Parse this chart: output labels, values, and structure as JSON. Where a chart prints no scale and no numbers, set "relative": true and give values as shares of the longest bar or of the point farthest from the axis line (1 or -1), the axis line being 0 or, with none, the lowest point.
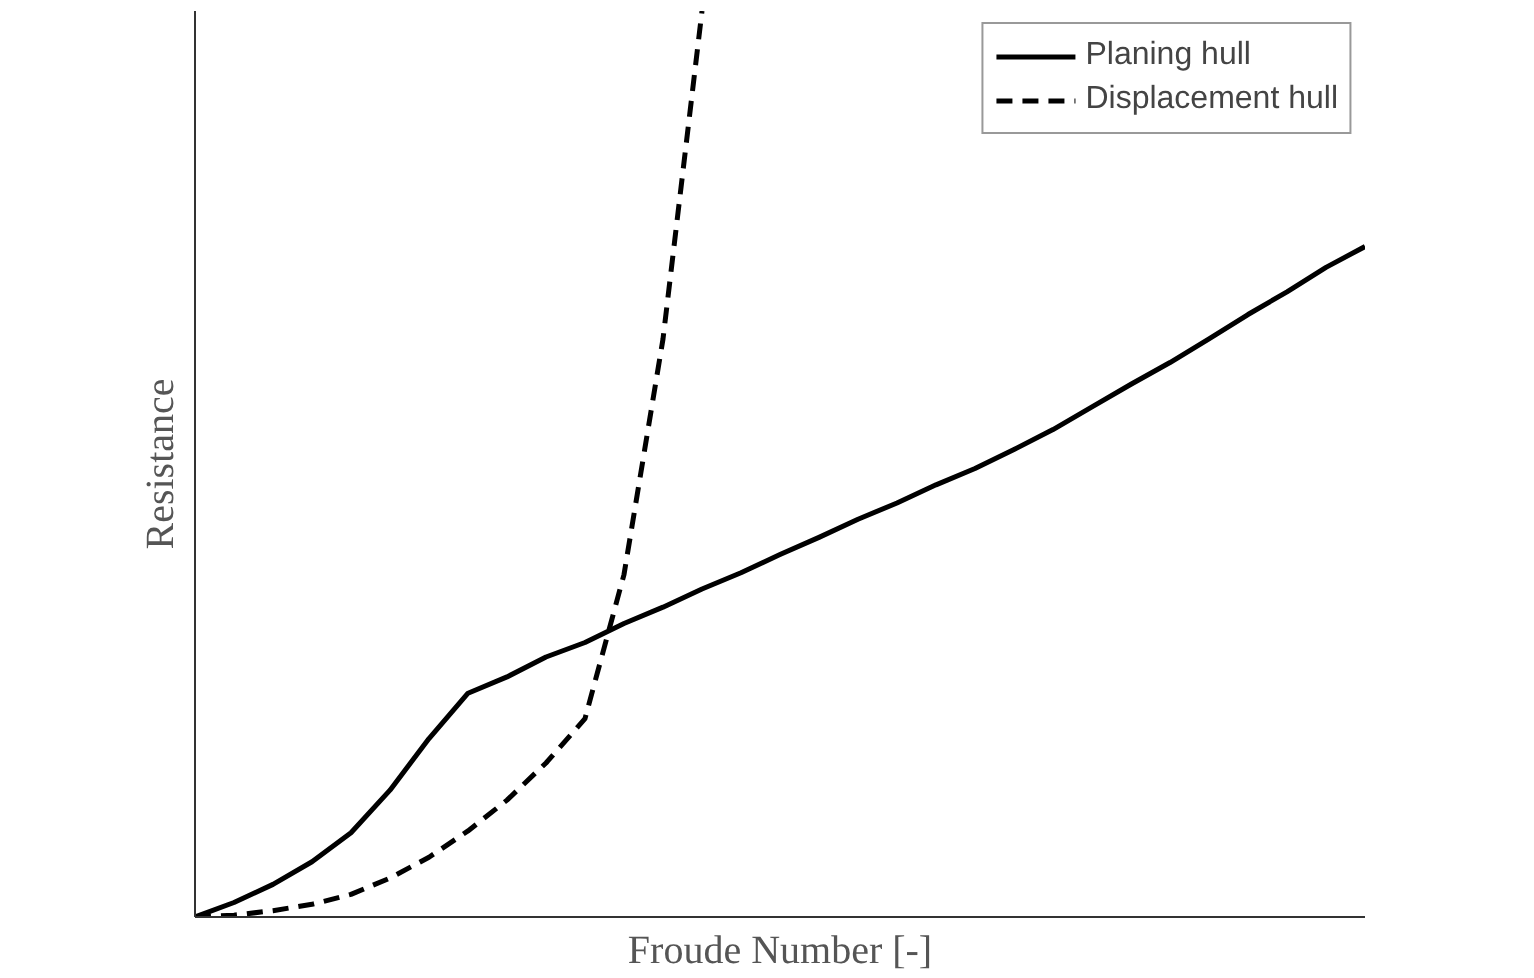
{
  "chart_data": {
    "type": "line",
    "relative": true,
    "xlabel": "Froude Number [-]",
    "ylabel": "Resistance",
    "legend": "top right",
    "grid": false,
    "marker": "none",
    "categories": [
      null,
      null,
      null,
      null,
      null,
      null,
      null,
      null,
      null,
      null,
      null,
      null,
      null,
      null,
      null,
      null,
      null,
      null,
      null,
      null,
      null,
      null,
      null,
      null,
      null,
      null,
      null,
      null,
      null,
      null,
      null
    ],
    "series": [
      {
        "name": "Planing hull",
        "color": "#000000",
        "line_style": "solid",
        "values": [
          0,
          0.016,
          0.036,
          0.061,
          0.093,
          0.14,
          0.197,
          0.247,
          0.265,
          0.287,
          0.303,
          0.324,
          0.342,
          0.362,
          0.38,
          0.4,
          0.419,
          0.439,
          0.457,
          0.477,
          0.495,
          0.516,
          0.538,
          0.563,
          0.588,
          0.612,
          0.638,
          0.665,
          0.69,
          0.717,
          0.74
        ]
      },
      {
        "name": "Displacement hull",
        "color": "#000000",
        "line_style": "dashed",
        "values": [
          0,
          0.002,
          0.007,
          0.014,
          0.025,
          0.043,
          0.066,
          0.095,
          0.129,
          0.17,
          0.219,
          0.378,
          0.638,
          1.0,
          null,
          null,
          null,
          null,
          null,
          null,
          null,
          null,
          null,
          null,
          null,
          null,
          null,
          null,
          null,
          null,
          null
        ]
      }
    ]
  }
}
